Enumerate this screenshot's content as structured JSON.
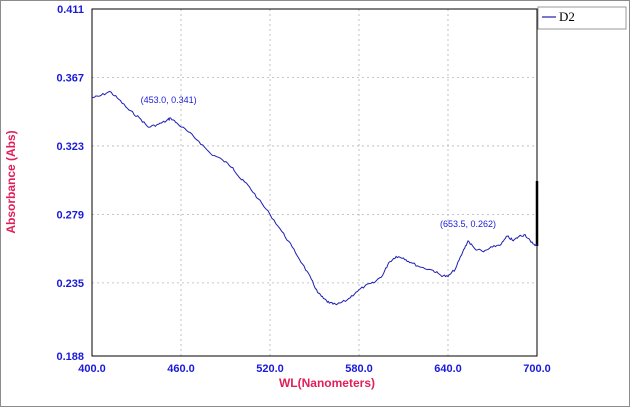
{
  "chart_data": {
    "type": "line",
    "xlabel": "WL(Nanometers)",
    "ylabel": "Absorbance (Abs)",
    "xlim": [
      400.0,
      700.0
    ],
    "ylim": [
      0.188,
      0.411
    ],
    "xticks": [
      "400.0",
      "460.0",
      "520.0",
      "580.0",
      "640.0",
      "700.0"
    ],
    "yticks": [
      "0.411",
      "0.367",
      "0.323",
      "0.279",
      "0.235",
      "0.188"
    ],
    "grid": true,
    "legend_position": "top-right",
    "series": [
      {
        "name": "D2",
        "color": "#1f1fb4",
        "points": [
          [
            400,
            0.354
          ],
          [
            405,
            0.355
          ],
          [
            412,
            0.358
          ],
          [
            418,
            0.353
          ],
          [
            425,
            0.346
          ],
          [
            432,
            0.341
          ],
          [
            438,
            0.335
          ],
          [
            445,
            0.337
          ],
          [
            450,
            0.339
          ],
          [
            453,
            0.341
          ],
          [
            458,
            0.337
          ],
          [
            465,
            0.332
          ],
          [
            472,
            0.326
          ],
          [
            480,
            0.318
          ],
          [
            488,
            0.314
          ],
          [
            495,
            0.309
          ],
          [
            500,
            0.302
          ],
          [
            505,
            0.298
          ],
          [
            512,
            0.289
          ],
          [
            520,
            0.279
          ],
          [
            528,
            0.268
          ],
          [
            535,
            0.258
          ],
          [
            542,
            0.247
          ],
          [
            548,
            0.237
          ],
          [
            552,
            0.229
          ],
          [
            556,
            0.225
          ],
          [
            560,
            0.222
          ],
          [
            565,
            0.221
          ],
          [
            572,
            0.224
          ],
          [
            578,
            0.229
          ],
          [
            584,
            0.233
          ],
          [
            590,
            0.235
          ],
          [
            596,
            0.24
          ],
          [
            600,
            0.248
          ],
          [
            605,
            0.252
          ],
          [
            610,
            0.251
          ],
          [
            615,
            0.248
          ],
          [
            622,
            0.245
          ],
          [
            630,
            0.243
          ],
          [
            635,
            0.24
          ],
          [
            640,
            0.239
          ],
          [
            645,
            0.244
          ],
          [
            650,
            0.255
          ],
          [
            653.5,
            0.262
          ],
          [
            658,
            0.257
          ],
          [
            664,
            0.255
          ],
          [
            670,
            0.258
          ],
          [
            676,
            0.26
          ],
          [
            680,
            0.265
          ],
          [
            684,
            0.262
          ],
          [
            688,
            0.265
          ],
          [
            692,
            0.266
          ],
          [
            696,
            0.261
          ],
          [
            700,
            0.259
          ]
        ]
      }
    ],
    "annotations": [
      {
        "x": 453.0,
        "y": 0.341,
        "text": "(453.0, 0.341)"
      },
      {
        "x": 653.5,
        "y": 0.262,
        "text": "(653.5, 0.262)"
      }
    ]
  }
}
